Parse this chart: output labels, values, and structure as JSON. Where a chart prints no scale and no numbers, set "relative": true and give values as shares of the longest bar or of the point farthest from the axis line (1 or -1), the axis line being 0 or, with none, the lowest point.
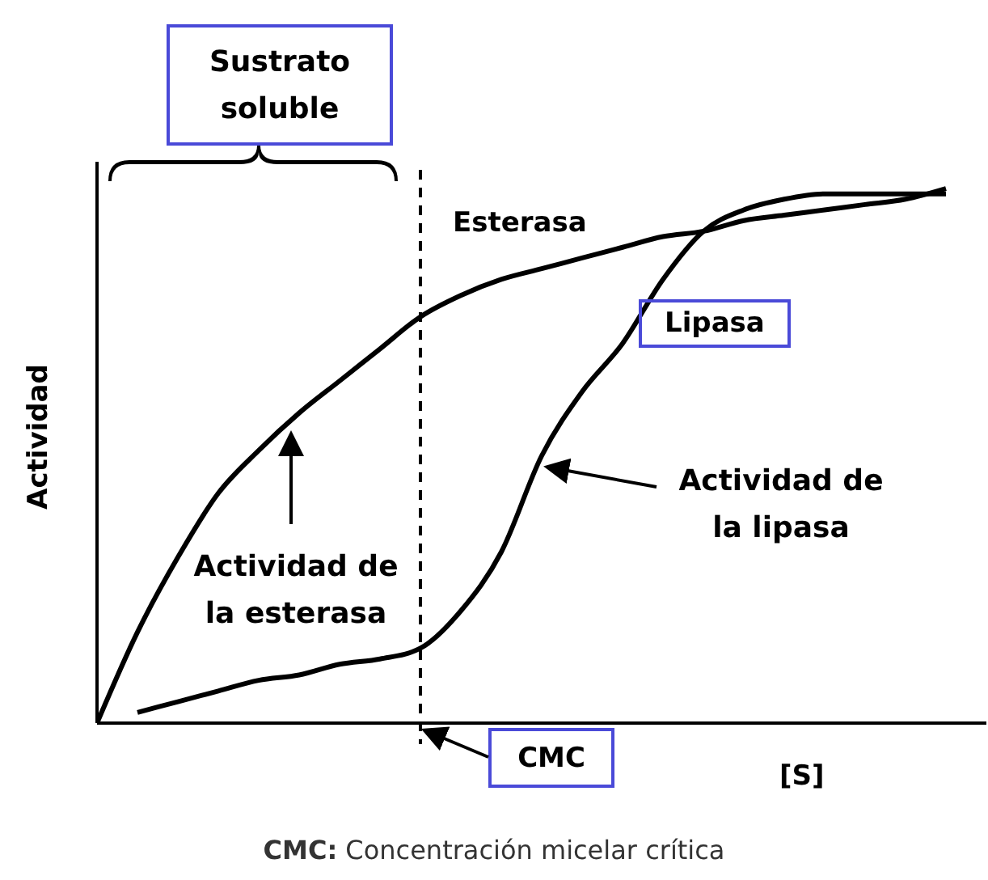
{
  "chart_data": {
    "type": "line",
    "relative": true,
    "xlabel": "[S]",
    "ylabel": "Actividad",
    "categories": [
      null,
      null,
      null,
      null,
      null,
      null,
      null,
      null,
      null,
      null,
      null,
      null,
      null,
      null,
      null,
      null,
      null,
      null,
      null,
      null,
      null,
      null
    ],
    "series": [
      {
        "name": "Esterasa",
        "color": "#000000",
        "values": [
          0,
          0.17,
          0.31,
          0.43,
          0.51,
          0.58,
          0.64,
          0.7,
          0.76,
          0.8,
          0.83,
          0.85,
          0.87,
          0.89,
          0.91,
          0.92,
          0.94,
          0.95,
          0.96,
          0.97,
          0.98,
          1
        ]
      },
      {
        "name": "Lipasa",
        "color": "#000000",
        "values": [
          null,
          0.02,
          0.04,
          0.06,
          0.08,
          0.09,
          0.11,
          0.12,
          0.14,
          0.21,
          0.32,
          0.5,
          0.62,
          0.71,
          0.83,
          0.92,
          0.96,
          0.98,
          0.99,
          0.99,
          0.99,
          0.99
        ]
      }
    ],
    "annotations": [
      "Sustrato soluble",
      "Actividad de la esterasa",
      "Actividad de la lipasa",
      "CMC: Concentración micelar crítica",
      "CMC"
    ],
    "marker": "none",
    "line_style": "solid"
  }
}
